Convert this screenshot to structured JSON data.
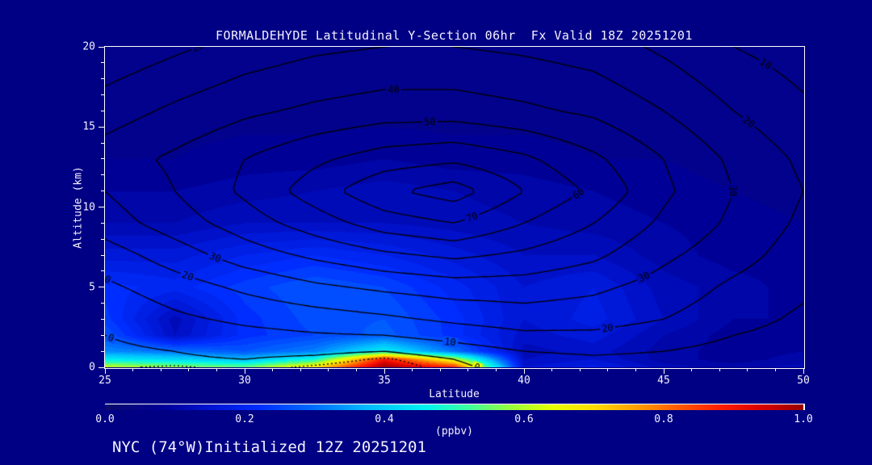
{
  "title": "FORMALDEHYDE Latitudinal Y-Section 06hr  Fx Valid 18Z 20251201",
  "footer": "NYC (74°W)Initialized 12Z 20251201",
  "colors": {
    "background": "#000084",
    "text": "#f4f1ff",
    "frame": "#ffffff",
    "contour_line": "#000000"
  },
  "axes": {
    "x": {
      "label": "Latitude",
      "min": 25,
      "max": 50,
      "major_ticks": [
        25,
        30,
        35,
        40,
        45,
        50
      ],
      "major_tick_labels": [
        "25",
        "30",
        "35",
        "40",
        "45",
        "50"
      ],
      "minor_step": 1
    },
    "y": {
      "label": "Altitude (km)",
      "min": 0,
      "max": 20,
      "major_ticks": [
        0,
        5,
        10,
        15,
        20
      ],
      "major_tick_labels": [
        "0",
        "5",
        "10",
        "15",
        "20"
      ],
      "minor_step": 1
    }
  },
  "colorbar": {
    "label": "(ppbv)",
    "min": 0.0,
    "max": 1.0,
    "tick_labels": [
      "0.0",
      "0.2",
      "0.4",
      "0.6",
      "0.8",
      "1.0"
    ],
    "tick_values": [
      0.0,
      0.2,
      0.4,
      0.6,
      0.8,
      1.0
    ],
    "stops": [
      [
        0.0,
        "#0a0a6e"
      ],
      [
        0.08,
        "#000096"
      ],
      [
        0.15,
        "#0014d2"
      ],
      [
        0.22,
        "#002dff"
      ],
      [
        0.3,
        "#006eff"
      ],
      [
        0.38,
        "#00beff"
      ],
      [
        0.46,
        "#00f5f0"
      ],
      [
        0.52,
        "#3cffa0"
      ],
      [
        0.58,
        "#96ff3c"
      ],
      [
        0.64,
        "#e6ff00"
      ],
      [
        0.7,
        "#ffdc00"
      ],
      [
        0.76,
        "#ffa000"
      ],
      [
        0.82,
        "#ff5a00"
      ],
      [
        0.88,
        "#ff1e00"
      ],
      [
        0.94,
        "#d70000"
      ],
      [
        1.0,
        "#960000"
      ]
    ]
  },
  "chart_data": {
    "type": "heatmap",
    "subtype": "filled-contour-latitude-height-cross-section",
    "title": "FORMALDEHYDE Latitudinal Y-Section 06hr  Fx Valid 18Z 20251201",
    "xlabel": "Latitude",
    "ylabel": "Altitude (km)",
    "xlim": [
      25,
      50
    ],
    "ylim": [
      0,
      20
    ],
    "fill_units": "ppbv",
    "fill_range": [
      0.0,
      1.0
    ],
    "lat": [
      25,
      27.5,
      30,
      32.5,
      35,
      37.5,
      40,
      42.5,
      45,
      47.5,
      50
    ],
    "alt": [
      0,
      0.5,
      1,
      2,
      3,
      5,
      7,
      9,
      11,
      13,
      16,
      20
    ],
    "fill_ppbv": [
      [
        0.62,
        0.58,
        0.55,
        0.7,
        1.0,
        0.88,
        0.15,
        0.18,
        0.12,
        0.1,
        0.12
      ],
      [
        0.45,
        0.42,
        0.38,
        0.48,
        0.9,
        0.62,
        0.13,
        0.15,
        0.1,
        0.08,
        0.1
      ],
      [
        0.33,
        0.3,
        0.27,
        0.32,
        0.46,
        0.3,
        0.12,
        0.14,
        0.1,
        0.08,
        0.09
      ],
      [
        0.27,
        0.13,
        0.22,
        0.25,
        0.28,
        0.22,
        0.14,
        0.16,
        0.11,
        0.08,
        0.09
      ],
      [
        0.24,
        0.12,
        0.22,
        0.26,
        0.27,
        0.22,
        0.15,
        0.18,
        0.13,
        0.09,
        0.09
      ],
      [
        0.22,
        0.2,
        0.24,
        0.27,
        0.25,
        0.2,
        0.15,
        0.17,
        0.12,
        0.1,
        0.08
      ],
      [
        0.16,
        0.16,
        0.19,
        0.21,
        0.19,
        0.16,
        0.13,
        0.13,
        0.1,
        0.08,
        0.08
      ],
      [
        0.11,
        0.11,
        0.13,
        0.13,
        0.13,
        0.12,
        0.11,
        0.1,
        0.09,
        0.08,
        0.07
      ],
      [
        0.09,
        0.09,
        0.1,
        0.11,
        0.12,
        0.11,
        0.1,
        0.09,
        0.08,
        0.07,
        0.06
      ],
      [
        0.07,
        0.07,
        0.08,
        0.08,
        0.09,
        0.08,
        0.08,
        0.07,
        0.07,
        0.06,
        0.06
      ],
      [
        0.06,
        0.06,
        0.06,
        0.06,
        0.06,
        0.06,
        0.06,
        0.06,
        0.06,
        0.05,
        0.05
      ],
      [
        0.05,
        0.05,
        0.05,
        0.05,
        0.05,
        0.05,
        0.05,
        0.05,
        0.05,
        0.05,
        0.05
      ]
    ],
    "contour_levels": [
      0,
      10,
      20,
      30,
      40,
      50,
      60,
      70,
      80
    ],
    "dotted_levels": [
      -5
    ],
    "contour_field": [
      [
        -4,
        -6,
        -3,
        -6,
        -9,
        -2,
        4,
        6,
        5,
        4,
        2
      ],
      [
        -3,
        -1,
        0,
        -2,
        -6,
        0,
        6,
        8,
        7,
        5,
        3
      ],
      [
        -2,
        0,
        2,
        2,
        0,
        5,
        10,
        12,
        10,
        7,
        4
      ],
      [
        0,
        4,
        7,
        9,
        10,
        14,
        18,
        18,
        15,
        10,
        6
      ],
      [
        2,
        8,
        12,
        15,
        18,
        22,
        25,
        24,
        20,
        14,
        8
      ],
      [
        8,
        15,
        22,
        28,
        32,
        35,
        35,
        32,
        26,
        18,
        12
      ],
      [
        15,
        25,
        35,
        42,
        48,
        52,
        48,
        42,
        32,
        24,
        15
      ],
      [
        25,
        35,
        45,
        55,
        65,
        70,
        60,
        50,
        38,
        28,
        18
      ],
      [
        30,
        40,
        52,
        65,
        78,
        85,
        70,
        58,
        42,
        30,
        20
      ],
      [
        35,
        42,
        50,
        58,
        65,
        68,
        62,
        52,
        40,
        28,
        18
      ],
      [
        25,
        32,
        38,
        42,
        45,
        45,
        42,
        38,
        30,
        20,
        12
      ],
      [
        12,
        18,
        24,
        28,
        30,
        30,
        28,
        25,
        18,
        10,
        5
      ]
    ],
    "contour_labels": [
      {
        "level": 0,
        "at": [
          [
            25.5,
            3.2
          ],
          [
            38.5,
            1.0
          ]
        ]
      },
      {
        "level": 10,
        "at": [
          [
            25.4,
            7.3
          ],
          [
            37.4,
            1.9
          ],
          [
            48.8,
            19.3
          ]
        ]
      },
      {
        "level": 20,
        "at": [
          [
            28.3,
            7.7
          ],
          [
            28.5,
            19.4
          ],
          [
            48.8,
            16.9
          ],
          [
            42.9,
            4.3
          ]
        ]
      },
      {
        "level": 30,
        "at": [
          [
            29.6,
            9.7
          ],
          [
            49.4,
            11.6
          ],
          [
            44.1,
            6.4
          ]
        ]
      },
      {
        "level": 40,
        "at": [
          [
            35.3,
            16.2
          ]
        ]
      },
      {
        "level": 50,
        "at": [
          [
            36.6,
            14.5
          ]
        ]
      },
      {
        "level": 60,
        "at": [
          [
            42.5,
            9.5
          ]
        ]
      },
      {
        "level": 70,
        "at": [
          [
            38.2,
            9.2
          ]
        ]
      }
    ]
  }
}
